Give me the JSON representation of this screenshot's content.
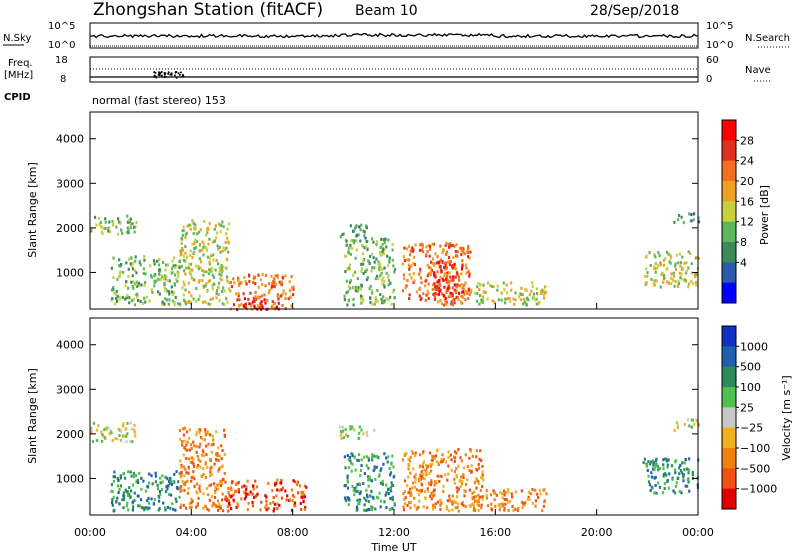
{
  "header": {
    "station": "Zhongshan Station (fitACF)",
    "beam": "Beam 10",
    "date": "28/Sep/2018"
  },
  "top_panels": {
    "nsky_label": "N.Sky",
    "nsky_tick_hi": "10^5",
    "nsky_tick_lo": "10^0",
    "nsearch_label": "N.Search",
    "nsearch_tick_hi": "10^5",
    "nsearch_tick_lo": "10^0",
    "freq_label_1": "Freq.",
    "freq_label_2": "[MHz]",
    "freq_tick_hi": "18",
    "freq_tick_lo": "8",
    "nave_label": "Nave",
    "nave_tick_hi": "60",
    "nave_tick_lo": "0",
    "cpid_label": "CPID",
    "cpid_text": "normal (fast stereo) 153"
  },
  "chart_data": [
    {
      "type": "heatmap",
      "name": "power",
      "ylabel": "Slant Range [km]",
      "ylim": [
        180,
        4600
      ],
      "yticks": [
        1000,
        2000,
        3000,
        4000
      ],
      "xlim": [
        0,
        24
      ],
      "colorbar_label": "Power [dB]",
      "colorbar_ticks": [
        "4",
        "8",
        "12",
        "16",
        "20",
        "24",
        "28"
      ],
      "colorbar_colors": [
        "#0000ff",
        "#2c5aa8",
        "#3a8a5a",
        "#5ab85a",
        "#c8d040",
        "#f0a020",
        "#f07020",
        "#e03020",
        "#ff0000"
      ],
      "echo_regions_hours_km": [
        {
          "t0": 0.0,
          "t1": 1.8,
          "r0": 1850,
          "r1": 2300,
          "level": 3
        },
        {
          "t0": 0.8,
          "t1": 3.5,
          "r0": 300,
          "r1": 1400,
          "level": 3
        },
        {
          "t0": 3.5,
          "t1": 5.5,
          "r0": 300,
          "r1": 2200,
          "level": 4
        },
        {
          "t0": 5.5,
          "t1": 8.0,
          "r0": 200,
          "r1": 1000,
          "level": 6
        },
        {
          "t0": 6.0,
          "t1": 7.5,
          "r0": 200,
          "r1": 450,
          "level": 8
        },
        {
          "t0": 9.8,
          "t1": 11.0,
          "r0": 1800,
          "r1": 2100,
          "level": 2
        },
        {
          "t0": 10.0,
          "t1": 12.0,
          "r0": 300,
          "r1": 1800,
          "level": 3
        },
        {
          "t0": 12.3,
          "t1": 15.0,
          "r0": 300,
          "r1": 1700,
          "level": 6
        },
        {
          "t0": 13.5,
          "t1": 14.8,
          "r0": 400,
          "r1": 1300,
          "level": 7
        },
        {
          "t0": 15.0,
          "t1": 18.0,
          "r0": 300,
          "r1": 800,
          "level": 4
        },
        {
          "t0": 21.8,
          "t1": 24.0,
          "r0": 700,
          "r1": 1500,
          "level": 4
        },
        {
          "t0": 23.0,
          "t1": 24.0,
          "r0": 2150,
          "r1": 2350,
          "level": 2
        }
      ]
    },
    {
      "type": "heatmap",
      "name": "velocity",
      "xlabel": "Time UT",
      "ylabel": "Slant Range [km]",
      "ylim": [
        180,
        4600
      ],
      "yticks": [
        1000,
        2000,
        3000,
        4000
      ],
      "xlim": [
        0,
        24
      ],
      "xticks": [
        "00:00",
        "04:00",
        "08:00",
        "12:00",
        "16:00",
        "20:00",
        "00:00"
      ],
      "colorbar_label": "Velocity [m s⁻¹]",
      "colorbar_ticks": [
        "1000",
        "500",
        "100",
        "25",
        "−25",
        "−100",
        "−500",
        "−1000"
      ],
      "colorbar_colors": [
        "#1030c0",
        "#2060b0",
        "#2a8a5a",
        "#50c050",
        "#c8c8c8",
        "#f0b020",
        "#f08010",
        "#f05010",
        "#e00000"
      ],
      "echo_regions_hours_km": [
        {
          "t0": 0.0,
          "t1": 1.8,
          "r0": 1850,
          "r1": 2300,
          "level": 4
        },
        {
          "t0": 0.8,
          "t1": 3.5,
          "r0": 300,
          "r1": 1200,
          "level": 2
        },
        {
          "t0": 3.5,
          "t1": 5.3,
          "r0": 300,
          "r1": 2200,
          "level": 6
        },
        {
          "t0": 5.3,
          "t1": 8.5,
          "r0": 300,
          "r1": 1000,
          "level": 7
        },
        {
          "t0": 9.8,
          "t1": 11.2,
          "r0": 1900,
          "r1": 2200,
          "level": 4
        },
        {
          "t0": 10.0,
          "t1": 12.0,
          "r0": 300,
          "r1": 1600,
          "level": 2
        },
        {
          "t0": 12.3,
          "t1": 15.5,
          "r0": 300,
          "r1": 1700,
          "level": 6
        },
        {
          "t0": 15.0,
          "t1": 18.0,
          "r0": 300,
          "r1": 800,
          "level": 6
        },
        {
          "t0": 21.8,
          "t1": 24.0,
          "r0": 700,
          "r1": 1500,
          "level": 2
        },
        {
          "t0": 23.0,
          "t1": 24.0,
          "r0": 2100,
          "r1": 2350,
          "level": 4
        }
      ]
    }
  ]
}
